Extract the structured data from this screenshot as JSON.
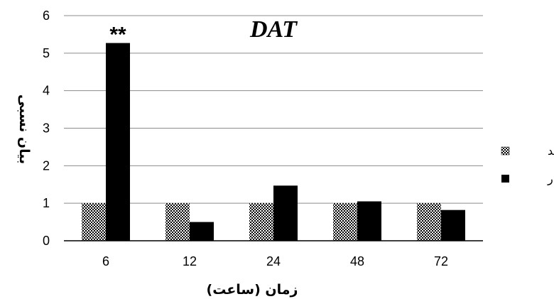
{
  "chart_data": {
    "type": "bar",
    "title": "DAT",
    "xlabel": "زمان (ساعت)",
    "ylabel": "بیان نسبی",
    "categories": [
      "6",
      "12",
      "24",
      "48",
      "72"
    ],
    "series": [
      {
        "name": "شاهد",
        "values": [
          1,
          1,
          1,
          1,
          1
        ],
        "pattern": "checker",
        "color": "#000000"
      },
      {
        "name": "تیمار",
        "values": [
          5.27,
          0.5,
          1.47,
          1.05,
          0.82
        ],
        "pattern": "solid",
        "color": "#000000"
      }
    ],
    "ylim": [
      0,
      6
    ],
    "yticks": [
      "0",
      "1",
      "2",
      "3",
      "4",
      "5",
      "6"
    ],
    "grid": true,
    "legend": "right",
    "annotations": [
      {
        "text": "**",
        "category": "6",
        "series": "تیمار"
      }
    ]
  }
}
